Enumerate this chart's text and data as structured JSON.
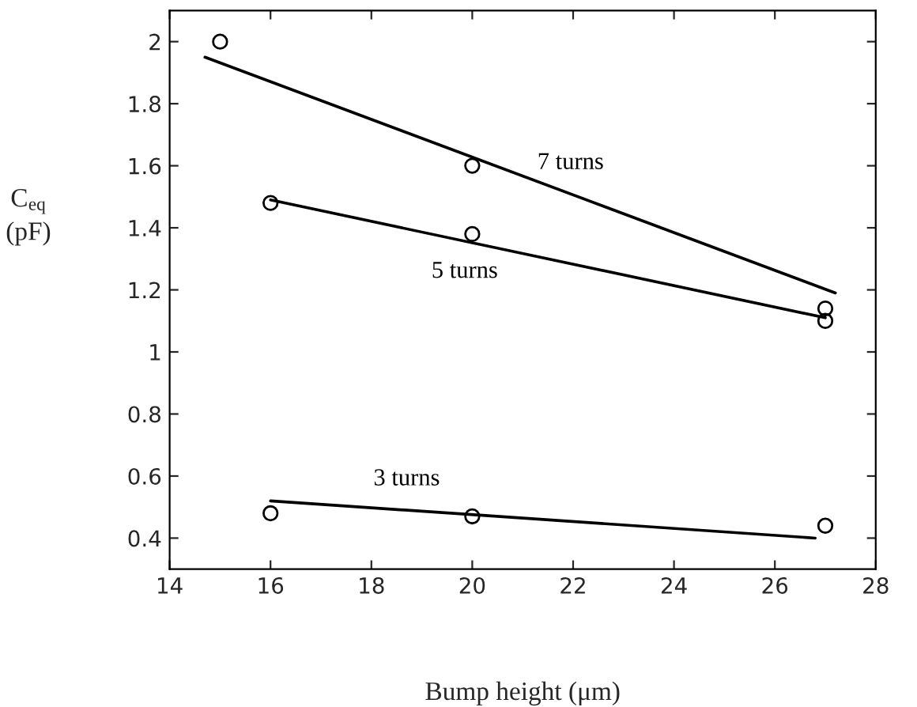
{
  "chart_data": {
    "type": "line",
    "xlabel": "Bump height (μm)",
    "ylabel": "C$_{eq}$\n(pF)",
    "xlim": [
      14,
      28
    ],
    "xticks": [
      14,
      16,
      18,
      20,
      22,
      24,
      26,
      28
    ],
    "ylim": [
      0.3,
      2.1
    ],
    "yticks": [
      0.4,
      0.6,
      0.8,
      1,
      1.2,
      1.4,
      1.6,
      1.8,
      2
    ],
    "grid": false,
    "legend": false,
    "series": [
      {
        "type": "scatter",
        "marker": "circle",
        "color": "#000000",
        "x": [
          15,
          20,
          27
        ],
        "values": [
          2.0,
          1.6,
          1.14
        ]
      },
      {
        "type": "scatter",
        "marker": "circle",
        "color": "#000000",
        "x": [
          16,
          20,
          27
        ],
        "values": [
          1.48,
          1.38,
          1.1
        ]
      },
      {
        "type": "scatter",
        "marker": "circle",
        "color": "#000000",
        "x": [
          16,
          20,
          27
        ],
        "values": [
          0.48,
          0.47,
          0.44
        ]
      },
      {
        "name": "7 turns",
        "marker": "none",
        "color": "#000000",
        "x": [
          14.7,
          27.2
        ],
        "values": [
          1.95,
          1.19
        ]
      },
      {
        "name": "5 turns",
        "marker": "none",
        "color": "#000000",
        "x": [
          16,
          27
        ],
        "values": [
          1.49,
          1.11
        ]
      },
      {
        "name": "3 turns",
        "marker": "none",
        "color": "#000000",
        "x": [
          16,
          26.8
        ],
        "values": [
          0.52,
          0.4
        ]
      }
    ]
  }
}
